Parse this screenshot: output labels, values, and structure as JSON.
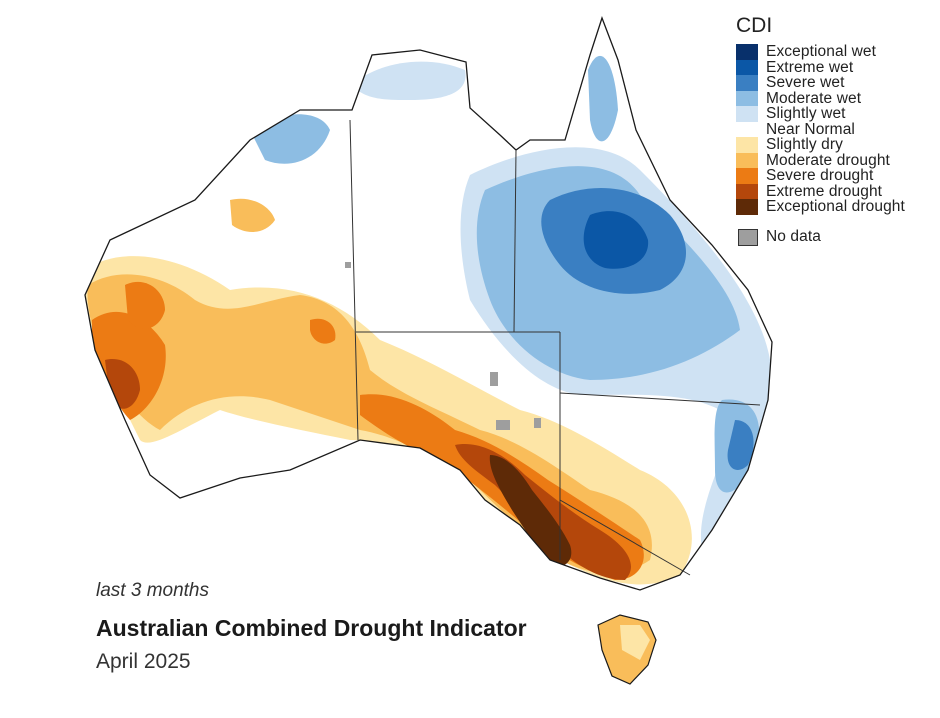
{
  "legend": {
    "title": "CDI",
    "categories": [
      {
        "label": "Exceptional wet",
        "color": "#08306b"
      },
      {
        "label": "Extreme wet",
        "color": "#0b57a6"
      },
      {
        "label": "Severe wet",
        "color": "#3a7fc2"
      },
      {
        "label": "Moderate wet",
        "color": "#8dbde3"
      },
      {
        "label": "Slightly wet",
        "color": "#cfe2f3"
      },
      {
        "label": "Near Normal",
        "color": "#ffffff"
      },
      {
        "label": "Slightly dry",
        "color": "#fde5a6"
      },
      {
        "label": "Moderate drought",
        "color": "#f9bd5a"
      },
      {
        "label": "Severe drought",
        "color": "#ec7b14"
      },
      {
        "label": "Extreme drought",
        "color": "#b4470b"
      },
      {
        "label": "Exceptional drought",
        "color": "#5e2a07"
      }
    ],
    "no_data": {
      "label": "No data",
      "color": "#9e9e9e"
    }
  },
  "caption": {
    "subtitle": "last 3 months",
    "title": "Australian Combined Drought Indicator",
    "period": "April 2025"
  }
}
